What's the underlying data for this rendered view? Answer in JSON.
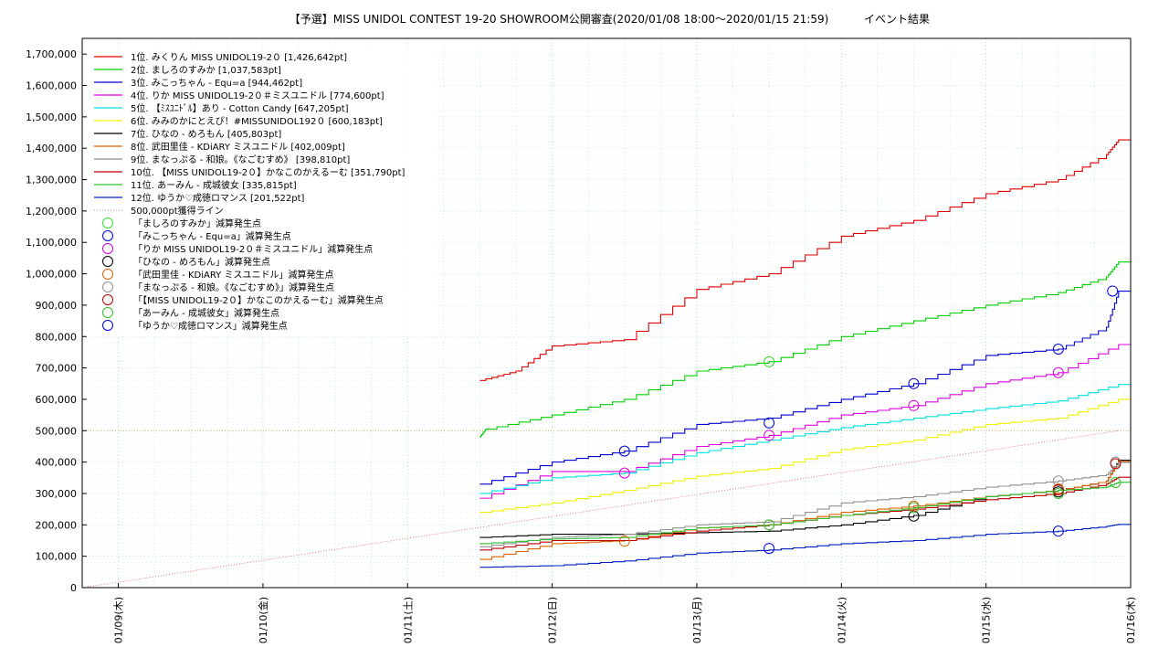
{
  "chart_data": {
    "type": "line",
    "title": "【予選】MISS UNIDOL CONTEST 19-20 SHOWROOM公開審査(2020/01/08 18:00～2020/01/15 21:59)",
    "subtitle": "イベント結果",
    "xlabel": "",
    "ylabel": "",
    "x_range": [
      "2020-01-08 18:00",
      "2020-01-16 00:00"
    ],
    "ylim": [
      0,
      1750000
    ],
    "y_ticks": [
      "0",
      "100,000",
      "200,000",
      "300,000",
      "400,000",
      "500,000",
      "600,000",
      "700,000",
      "800,000",
      "900,000",
      "1,000,000",
      "1,100,000",
      "1,200,000",
      "1,300,000",
      "1,400,000",
      "1,500,000",
      "1,600,000",
      "1,700,000"
    ],
    "y_tick_values": [
      0,
      100000,
      200000,
      300000,
      400000,
      500000,
      600000,
      700000,
      800000,
      900000,
      1000000,
      1100000,
      1200000,
      1300000,
      1400000,
      1500000,
      1600000,
      1700000
    ],
    "x_ticks": [
      {
        "label": "01/09(木)",
        "x": "2020-01-09 00:00"
      },
      {
        "label": "01/10(金)",
        "x": "2020-01-10 00:00"
      },
      {
        "label": "01/11(土)",
        "x": "2020-01-11 00:00"
      },
      {
        "label": "01/12(日)",
        "x": "2020-01-12 00:00"
      },
      {
        "label": "01/13(月)",
        "x": "2020-01-13 00:00"
      },
      {
        "label": "01/14(火)",
        "x": "2020-01-14 00:00"
      },
      {
        "label": "01/15(水)",
        "x": "2020-01-15 00:00"
      },
      {
        "label": "01/16(木)",
        "x": "2020-01-16 00:00"
      }
    ],
    "grid": true,
    "legend_position": "top-left",
    "series": [
      {
        "name": "1位. みくりん MISS UNIDOL19-2０ [1,426,642pt]",
        "color": "#e00000",
        "points": [
          [
            "2020-01-11 12:00",
            660000
          ],
          [
            "2020-01-11 18:00",
            690000
          ],
          [
            "2020-01-12 00:00",
            770000
          ],
          [
            "2020-01-12 12:00",
            790000
          ],
          [
            "2020-01-13 00:00",
            950000
          ],
          [
            "2020-01-13 12:00",
            1000000
          ],
          [
            "2020-01-14 00:00",
            1120000
          ],
          [
            "2020-01-14 12:00",
            1170000
          ],
          [
            "2020-01-15 00:00",
            1255000
          ],
          [
            "2020-01-15 12:00",
            1300000
          ],
          [
            "2020-01-15 20:00",
            1380000
          ],
          [
            "2020-01-15 22:00",
            1426642
          ],
          [
            "2020-01-16 00:00",
            1426642
          ]
        ]
      },
      {
        "name": "2位. ましろのすみか [1,037,583pt]",
        "color": "#00d000",
        "points": [
          [
            "2020-01-11 12:00",
            480000
          ],
          [
            "2020-01-11 13:00",
            505000
          ],
          [
            "2020-01-12 00:00",
            550000
          ],
          [
            "2020-01-12 12:00",
            600000
          ],
          [
            "2020-01-13 00:00",
            690000
          ],
          [
            "2020-01-13 12:00",
            720000
          ],
          [
            "2020-01-14 00:00",
            800000
          ],
          [
            "2020-01-14 12:00",
            850000
          ],
          [
            "2020-01-15 00:00",
            900000
          ],
          [
            "2020-01-15 12:00",
            940000
          ],
          [
            "2020-01-15 20:00",
            990000
          ],
          [
            "2020-01-15 22:00",
            1037583
          ],
          [
            "2020-01-16 00:00",
            1037583
          ]
        ]
      },
      {
        "name": "3位. みこっちゃん - Equ=a [944,462pt]",
        "color": "#0000d0",
        "points": [
          [
            "2020-01-11 12:00",
            330000
          ],
          [
            "2020-01-12 00:00",
            400000
          ],
          [
            "2020-01-12 12:00",
            435000
          ],
          [
            "2020-01-13 00:00",
            520000
          ],
          [
            "2020-01-13 12:00",
            540000
          ],
          [
            "2020-01-14 00:00",
            600000
          ],
          [
            "2020-01-14 12:00",
            650000
          ],
          [
            "2020-01-15 00:00",
            740000
          ],
          [
            "2020-01-15 12:00",
            760000
          ],
          [
            "2020-01-15 20:00",
            830000
          ],
          [
            "2020-01-15 22:00",
            944462
          ],
          [
            "2020-01-16 00:00",
            944462
          ]
        ]
      },
      {
        "name": "4位. りか  MISS UNIDOL19-2０＃ミスユニドル [774,600pt]",
        "color": "#e000e0",
        "points": [
          [
            "2020-01-11 12:00",
            285000
          ],
          [
            "2020-01-12 00:00",
            370000
          ],
          [
            "2020-01-12 12:00",
            370000
          ],
          [
            "2020-01-13 00:00",
            450000
          ],
          [
            "2020-01-13 12:00",
            485000
          ],
          [
            "2020-01-14 00:00",
            550000
          ],
          [
            "2020-01-14 12:00",
            580000
          ],
          [
            "2020-01-15 00:00",
            650000
          ],
          [
            "2020-01-15 12:00",
            685000
          ],
          [
            "2020-01-15 22:00",
            774600
          ],
          [
            "2020-01-16 00:00",
            774600
          ]
        ]
      },
      {
        "name": "5位. 【ﾐｽﾕﾆﾄﾞﾙ】あり - Cotton Candy [647,205pt]",
        "color": "#00e0e0",
        "points": [
          [
            "2020-01-11 12:00",
            300000
          ],
          [
            "2020-01-12 00:00",
            350000
          ],
          [
            "2020-01-12 12:00",
            365000
          ],
          [
            "2020-01-13 00:00",
            430000
          ],
          [
            "2020-01-13 12:00",
            470000
          ],
          [
            "2020-01-14 00:00",
            510000
          ],
          [
            "2020-01-14 12:00",
            540000
          ],
          [
            "2020-01-15 00:00",
            570000
          ],
          [
            "2020-01-15 12:00",
            595000
          ],
          [
            "2020-01-15 22:00",
            647205
          ],
          [
            "2020-01-16 00:00",
            647205
          ]
        ]
      },
      {
        "name": "6位. みみのかにとえぴ！#MISSUNIDOL192０ [600,183pt]",
        "color": "#f0f000",
        "points": [
          [
            "2020-01-11 12:00",
            240000
          ],
          [
            "2020-01-12 00:00",
            270000
          ],
          [
            "2020-01-12 12:00",
            310000
          ],
          [
            "2020-01-13 00:00",
            355000
          ],
          [
            "2020-01-13 12:00",
            380000
          ],
          [
            "2020-01-14 00:00",
            440000
          ],
          [
            "2020-01-14 12:00",
            470000
          ],
          [
            "2020-01-15 00:00",
            520000
          ],
          [
            "2020-01-15 12:00",
            540000
          ],
          [
            "2020-01-15 22:00",
            600183
          ],
          [
            "2020-01-16 00:00",
            600183
          ]
        ]
      },
      {
        "name": "7位. ひなの - めろもん [405,803pt]",
        "color": "#000000",
        "points": [
          [
            "2020-01-11 12:00",
            160000
          ],
          [
            "2020-01-12 00:00",
            170000
          ],
          [
            "2020-01-12 12:00",
            170000
          ],
          [
            "2020-01-13 00:00",
            175000
          ],
          [
            "2020-01-13 12:00",
            180000
          ],
          [
            "2020-01-14 00:00",
            200000
          ],
          [
            "2020-01-14 12:00",
            230000
          ],
          [
            "2020-01-15 00:00",
            290000
          ],
          [
            "2020-01-15 12:00",
            310000
          ],
          [
            "2020-01-15 20:00",
            340000
          ],
          [
            "2020-01-15 22:00",
            405803
          ],
          [
            "2020-01-16 00:00",
            405803
          ]
        ]
      },
      {
        "name": "8位. 武田里佳 - KDiARY ミスユニドル [402,009pt]",
        "color": "#e06000",
        "points": [
          [
            "2020-01-11 12:00",
            90000
          ],
          [
            "2020-01-12 00:00",
            140000
          ],
          [
            "2020-01-12 12:00",
            150000
          ],
          [
            "2020-01-13 00:00",
            190000
          ],
          [
            "2020-01-13 12:00",
            200000
          ],
          [
            "2020-01-14 00:00",
            240000
          ],
          [
            "2020-01-14 12:00",
            260000
          ],
          [
            "2020-01-15 00:00",
            290000
          ],
          [
            "2020-01-15 12:00",
            310000
          ],
          [
            "2020-01-15 20:00",
            340000
          ],
          [
            "2020-01-15 22:00",
            402009
          ],
          [
            "2020-01-16 00:00",
            402009
          ]
        ]
      },
      {
        "name": "9位. まなっぷる - 和娘。《なごむすめ》 [398,810pt]",
        "color": "#909090",
        "points": [
          [
            "2020-01-11 12:00",
            130000
          ],
          [
            "2020-01-12 00:00",
            160000
          ],
          [
            "2020-01-12 12:00",
            170000
          ],
          [
            "2020-01-13 00:00",
            200000
          ],
          [
            "2020-01-13 12:00",
            210000
          ],
          [
            "2020-01-14 00:00",
            270000
          ],
          [
            "2020-01-14 12:00",
            290000
          ],
          [
            "2020-01-15 00:00",
            320000
          ],
          [
            "2020-01-15 12:00",
            340000
          ],
          [
            "2020-01-15 20:00",
            360000
          ],
          [
            "2020-01-15 22:00",
            398810
          ],
          [
            "2020-01-16 00:00",
            398810
          ]
        ]
      },
      {
        "name": "10位. 【MISS UNIDOL19-2０】かなこのかえるーむ [351,790pt]",
        "color": "#c00000",
        "points": [
          [
            "2020-01-11 12:00",
            120000
          ],
          [
            "2020-01-12 00:00",
            150000
          ],
          [
            "2020-01-12 12:00",
            150000
          ],
          [
            "2020-01-13 00:00",
            180000
          ],
          [
            "2020-01-13 12:00",
            200000
          ],
          [
            "2020-01-14 00:00",
            230000
          ],
          [
            "2020-01-14 12:00",
            250000
          ],
          [
            "2020-01-15 00:00",
            280000
          ],
          [
            "2020-01-15 12:00",
            300000
          ],
          [
            "2020-01-15 20:00",
            330000
          ],
          [
            "2020-01-15 22:00",
            351790
          ],
          [
            "2020-01-16 00:00",
            351790
          ]
        ]
      },
      {
        "name": "11位. あーみん - 成城彼女 [335,815pt]",
        "color": "#30c030",
        "points": [
          [
            "2020-01-11 12:00",
            140000
          ],
          [
            "2020-01-12 00:00",
            155000
          ],
          [
            "2020-01-12 12:00",
            160000
          ],
          [
            "2020-01-13 00:00",
            190000
          ],
          [
            "2020-01-13 12:00",
            200000
          ],
          [
            "2020-01-14 00:00",
            230000
          ],
          [
            "2020-01-14 12:00",
            255000
          ],
          [
            "2020-01-15 00:00",
            290000
          ],
          [
            "2020-01-15 12:00",
            310000
          ],
          [
            "2020-01-15 20:00",
            320000
          ],
          [
            "2020-01-15 22:00",
            335815
          ],
          [
            "2020-01-16 00:00",
            335815
          ]
        ]
      },
      {
        "name": "12位. ゆうか♡成徳ロマンス [201,522pt]",
        "color": "#0020c0",
        "points": [
          [
            "2020-01-11 12:00",
            65000
          ],
          [
            "2020-01-12 00:00",
            70000
          ],
          [
            "2020-01-12 12:00",
            85000
          ],
          [
            "2020-01-13 00:00",
            110000
          ],
          [
            "2020-01-13 12:00",
            120000
          ],
          [
            "2020-01-14 00:00",
            140000
          ],
          [
            "2020-01-14 12:00",
            150000
          ],
          [
            "2020-01-15 00:00",
            170000
          ],
          [
            "2020-01-15 12:00",
            180000
          ],
          [
            "2020-01-15 20:00",
            195000
          ],
          [
            "2020-01-15 22:00",
            201522
          ],
          [
            "2020-01-16 00:00",
            201522
          ]
        ]
      }
    ],
    "reference_line": {
      "name": "500,000pt獲得ライン",
      "color": "#e06060",
      "points": [
        [
          "2020-01-08 18:00",
          0
        ],
        [
          "2020-01-15 22:00",
          500000
        ]
      ]
    },
    "reduction_points": [
      {
        "name": "「ましろのすみか」減算発生点",
        "color": "#30e030",
        "points": [
          [
            "2020-01-13 12:00",
            720000
          ]
        ]
      },
      {
        "name": "「みこっちゃん - Equ=a」減算発生点",
        "color": "#0000e0",
        "points": [
          [
            "2020-01-12 12:00",
            435000
          ],
          [
            "2020-01-13 12:00",
            525000
          ],
          [
            "2020-01-14 12:00",
            650000
          ],
          [
            "2020-01-15 12:00",
            760000
          ],
          [
            "2020-01-15 21:00",
            945000
          ]
        ]
      },
      {
        "name": "「りか  MISS UNIDOL19-2０＃ミスユニドル」減算発生点",
        "color": "#e000e0",
        "points": [
          [
            "2020-01-12 12:00",
            365000
          ],
          [
            "2020-01-13 12:00",
            485000
          ],
          [
            "2020-01-14 12:00",
            580000
          ],
          [
            "2020-01-15 12:00",
            685000
          ]
        ]
      },
      {
        "name": "「ひなの - めろもん」減算発生点",
        "color": "#000000",
        "points": [
          [
            "2020-01-14 12:00",
            228000
          ],
          [
            "2020-01-15 12:00",
            305000
          ]
        ]
      },
      {
        "name": "「武田里佳 - KDiARY ミスユニドル」減算発生点",
        "color": "#e06000",
        "points": [
          [
            "2020-01-12 12:00",
            148000
          ],
          [
            "2020-01-13 12:00",
            200000
          ],
          [
            "2020-01-14 12:00",
            260000
          ],
          [
            "2020-01-15 12:00",
            315000
          ]
        ]
      },
      {
        "name": "「まなっぷる - 和娘。《なごむすめ》」減算発生点",
        "color": "#909090",
        "points": [
          [
            "2020-01-15 12:00",
            340000
          ],
          [
            "2020-01-15 21:30",
            400000
          ]
        ]
      },
      {
        "name": "「【MISS UNIDOL19-2０】かなこのかえるーむ」減算発生点",
        "color": "#c00000",
        "points": [
          [
            "2020-01-15 12:00",
            312000
          ],
          [
            "2020-01-15 21:30",
            395000
          ]
        ]
      },
      {
        "name": "「あーみん - 成城彼女」減算発生点",
        "color": "#30c030",
        "points": [
          [
            "2020-01-13 12:00",
            200000
          ],
          [
            "2020-01-14 12:00",
            255000
          ],
          [
            "2020-01-15 12:00",
            300000
          ],
          [
            "2020-01-15 21:30",
            335000
          ]
        ]
      },
      {
        "name": "「ゆうか♡成徳ロマンス」減算発生点",
        "color": "#0000e0",
        "points": [
          [
            "2020-01-13 12:00",
            125000
          ],
          [
            "2020-01-15 12:00",
            180000
          ]
        ]
      }
    ]
  }
}
